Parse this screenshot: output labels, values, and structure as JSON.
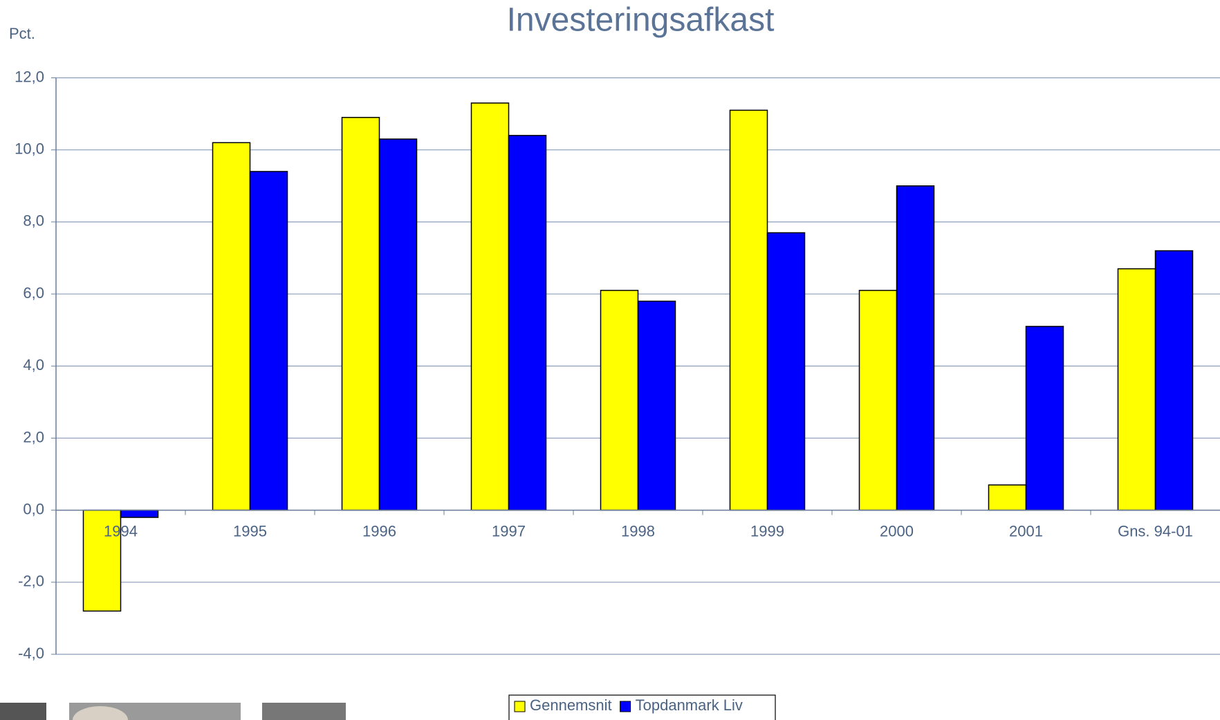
{
  "chart_data": {
    "type": "bar",
    "title": "Investeringsafkast",
    "y_label": "Pct.",
    "categories": [
      "1994",
      "1995",
      "1996",
      "1997",
      "1998",
      "1999",
      "2000",
      "2001",
      "Gns. 94-01"
    ],
    "series": [
      {
        "name": "Gennemsnit",
        "color": "#ffff00",
        "values": [
          -2.8,
          10.2,
          10.9,
          11.3,
          6.1,
          11.1,
          6.1,
          0.7,
          6.7
        ]
      },
      {
        "name": "Topdanmark Liv",
        "color": "#0000ff",
        "values": [
          -0.2,
          9.4,
          10.3,
          10.4,
          5.8,
          7.7,
          9.0,
          5.1,
          7.2
        ]
      }
    ],
    "ylim": [
      -4,
      12
    ],
    "yticks": [
      {
        "value": -4,
        "label": "-4,0"
      },
      {
        "value": -2,
        "label": "-2,0"
      },
      {
        "value": 0,
        "label": "0,0"
      },
      {
        "value": 2,
        "label": "2,0"
      },
      {
        "value": 4,
        "label": "4,0"
      },
      {
        "value": 6,
        "label": "6,0"
      },
      {
        "value": 8,
        "label": "8,0"
      },
      {
        "value": 10,
        "label": "10,0"
      },
      {
        "value": 12,
        "label": "12,0"
      }
    ],
    "grid": true,
    "legend": "bottom"
  }
}
